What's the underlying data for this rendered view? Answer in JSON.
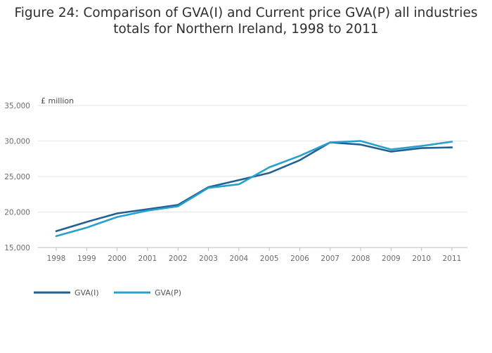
{
  "title_line1": "Figure 24: Comparison of GVA(I) and Current price GVA(P) all industries",
  "title_line2": "totals for Northern Ireland, 1998 to 2011",
  "chart_data": {
    "type": "line",
    "title": "Figure 24: Comparison of GVA(I) and Current price GVA(P) all industries totals for Northern Ireland, 1998 to 2011",
    "ylabel": "£ million",
    "xlabel": "",
    "x": [
      "1998",
      "1999",
      "2000",
      "2001",
      "2002",
      "2003",
      "2004",
      "2005",
      "2006",
      "2007",
      "2008",
      "2009",
      "2010",
      "2011"
    ],
    "ylim": [
      15000,
      35000
    ],
    "yticks": [
      15000,
      20000,
      25000,
      30000,
      35000
    ],
    "ytick_labels": [
      "15,000",
      "20,000",
      "25,000",
      "30,000",
      "35,000"
    ],
    "grid": true,
    "legend_position": "bottom-left",
    "series": [
      {
        "name": "GVA(I)",
        "color": "#206095",
        "values": [
          17300,
          18600,
          19800,
          20400,
          21000,
          23500,
          24500,
          25500,
          27300,
          29800,
          29500,
          28500,
          29000,
          29100
        ]
      },
      {
        "name": "GVA(P)",
        "color": "#27a0cc",
        "values": [
          16600,
          17800,
          19300,
          20200,
          20800,
          23400,
          23900,
          26300,
          27900,
          29800,
          30000,
          28800,
          29300,
          29900
        ]
      }
    ]
  }
}
